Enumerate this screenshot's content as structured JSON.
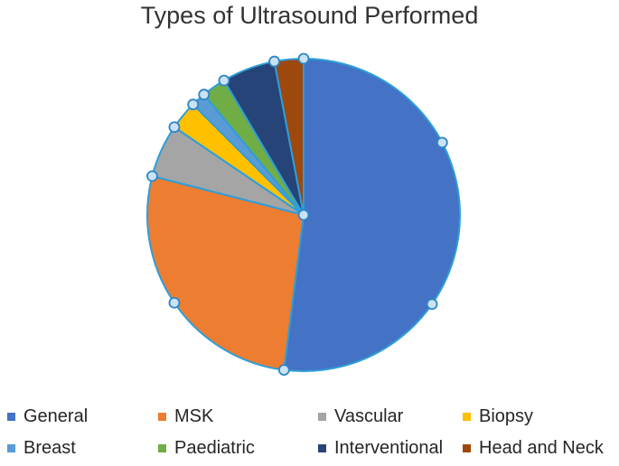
{
  "title": "Types of Ultrasound Performed",
  "chart_data": {
    "type": "pie",
    "title": "Types of Ultrasound Performed",
    "categories": [
      "General",
      "MSK",
      "Vascular",
      "Biopsy",
      "Breast",
      "Paediatric",
      "Interventional",
      "Head and Neck"
    ],
    "values": [
      52,
      27,
      5.5,
      3,
      1.5,
      2.5,
      5.5,
      3
    ],
    "unit": "percent",
    "start_angle_deg": 0,
    "direction": "clockwise",
    "colors": [
      "#4472C4",
      "#ED7D31",
      "#A5A5A5",
      "#FFC000",
      "#5B9BD5",
      "#70AD47",
      "#264478",
      "#9E480E"
    ],
    "legend_position": "bottom",
    "legend_rows": [
      [
        "General",
        "MSK",
        "Vascular",
        "Biopsy"
      ],
      [
        "Breast",
        "Paediatric",
        "Interventional",
        "Head and Neck"
      ]
    ],
    "selection_handles_visible": true
  },
  "style": {
    "background": "#FFFFFF",
    "title_color": "#333333",
    "legend_text_color": "#262626",
    "slice_border_color": "#2E9ED9",
    "handle_fill": "#C9E2F5",
    "handle_stroke": "#2E86C4"
  }
}
